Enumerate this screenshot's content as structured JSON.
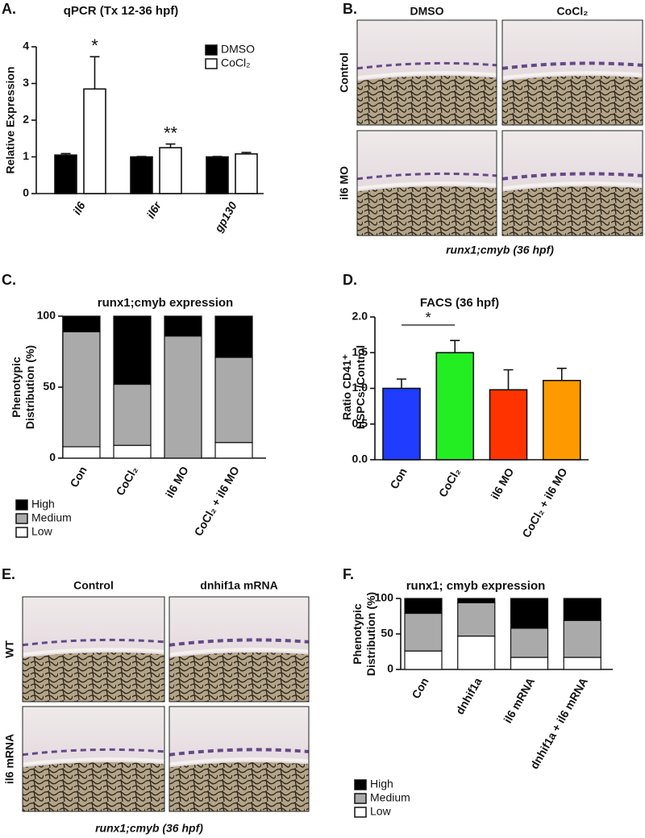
{
  "chart_data": [
    {
      "type": "bar",
      "panel_label": "A.",
      "title": "qPCR (Tx 12-36 hpf)",
      "ylabel": [
        "Relative Expression"
      ],
      "categories": [
        "il6",
        "il6r",
        "gp130"
      ],
      "series": [
        {
          "name": "DMSO",
          "color": "#000000",
          "values": [
            1.05,
            1.0,
            1.0
          ],
          "errors": [
            0.04,
            0.01,
            0.01
          ]
        },
        {
          "name": "CoCl₂",
          "color": "#ffffff",
          "values": [
            2.85,
            1.25,
            1.08
          ],
          "errors": [
            0.88,
            0.1,
            0.04
          ]
        }
      ],
      "annotations": [
        "*",
        "**"
      ],
      "ylim": [
        0,
        4
      ],
      "yticks": [
        0,
        1,
        2,
        3,
        4
      ]
    },
    {
      "type": "stacked_bar",
      "panel_label": "C.",
      "title": "runx1;cmyb expression",
      "ylabel": [
        "Phenotypic",
        "Distribution (%)"
      ],
      "categories": [
        "Con",
        "CoCl₂",
        "il6 MO",
        "CoCl₂ + il6 MO"
      ],
      "series": [
        {
          "name": "Low",
          "color": "#ffffff",
          "values": [
            8,
            9,
            0,
            11
          ]
        },
        {
          "name": "Medium",
          "color": "#aaaaaa",
          "values": [
            81,
            43,
            86,
            60
          ]
        },
        {
          "name": "High",
          "color": "#000000",
          "values": [
            11,
            48,
            14,
            29
          ]
        }
      ],
      "ylim": [
        0,
        100
      ],
      "yticks": [
        0,
        50,
        100
      ]
    },
    {
      "type": "bar",
      "panel_label": "D.",
      "title": "FACS (36 hpf)",
      "ylabel": [
        "Ratio CD41⁺",
        "HSPCs /Control"
      ],
      "categories": [
        "Con",
        "CoCl₂",
        "il6 MO",
        "CoCl₂ + il6 MO"
      ],
      "values": [
        1.0,
        1.5,
        0.98,
        1.11
      ],
      "errors": [
        0.13,
        0.17,
        0.28,
        0.17
      ],
      "colors": [
        "#1f3cff",
        "#22ee22",
        "#ff3300",
        "#ff9900"
      ],
      "annotations": [
        "*"
      ],
      "ylim": [
        0,
        2
      ],
      "yticks": [
        {
          "value": 0,
          "label": "0.0"
        },
        0.5,
        {
          "value": 1,
          "label": "1.0"
        },
        1.5,
        {
          "value": 2,
          "label": "2.0"
        }
      ]
    },
    {
      "type": "stacked_bar",
      "panel_label": "F.",
      "title": "runx1; cmyb expression",
      "ylabel": [
        "Phenotypic",
        "Distribution (%)"
      ],
      "categories": [
        "Con",
        "dnhif1a",
        "il6 mRNA",
        "dnhif1a + il6 mRNA"
      ],
      "series": [
        {
          "name": "Low",
          "color": "#ffffff",
          "values": [
            26,
            47,
            17,
            17
          ]
        },
        {
          "name": "Medium",
          "color": "#aaaaaa",
          "values": [
            53,
            47,
            41,
            52
          ]
        },
        {
          "name": "High",
          "color": "#000000",
          "values": [
            21,
            6,
            42,
            31
          ]
        }
      ],
      "ylim": [
        0,
        100
      ],
      "yticks": [
        0,
        50,
        100
      ]
    }
  ],
  "image_panels": [
    {
      "panel_label": "B.",
      "columns": [
        "DMSO",
        "CoCl₂"
      ],
      "rows": [
        "Control",
        "il6 MO"
      ],
      "caption": "runx1;cmyb (36 hpf)"
    },
    {
      "panel_label": "E.",
      "columns": [
        "Control",
        "dnhif1a mRNA"
      ],
      "rows": [
        "WT",
        "il6 mRNA"
      ],
      "caption": "runx1;cmyb (36 hpf)"
    }
  ]
}
